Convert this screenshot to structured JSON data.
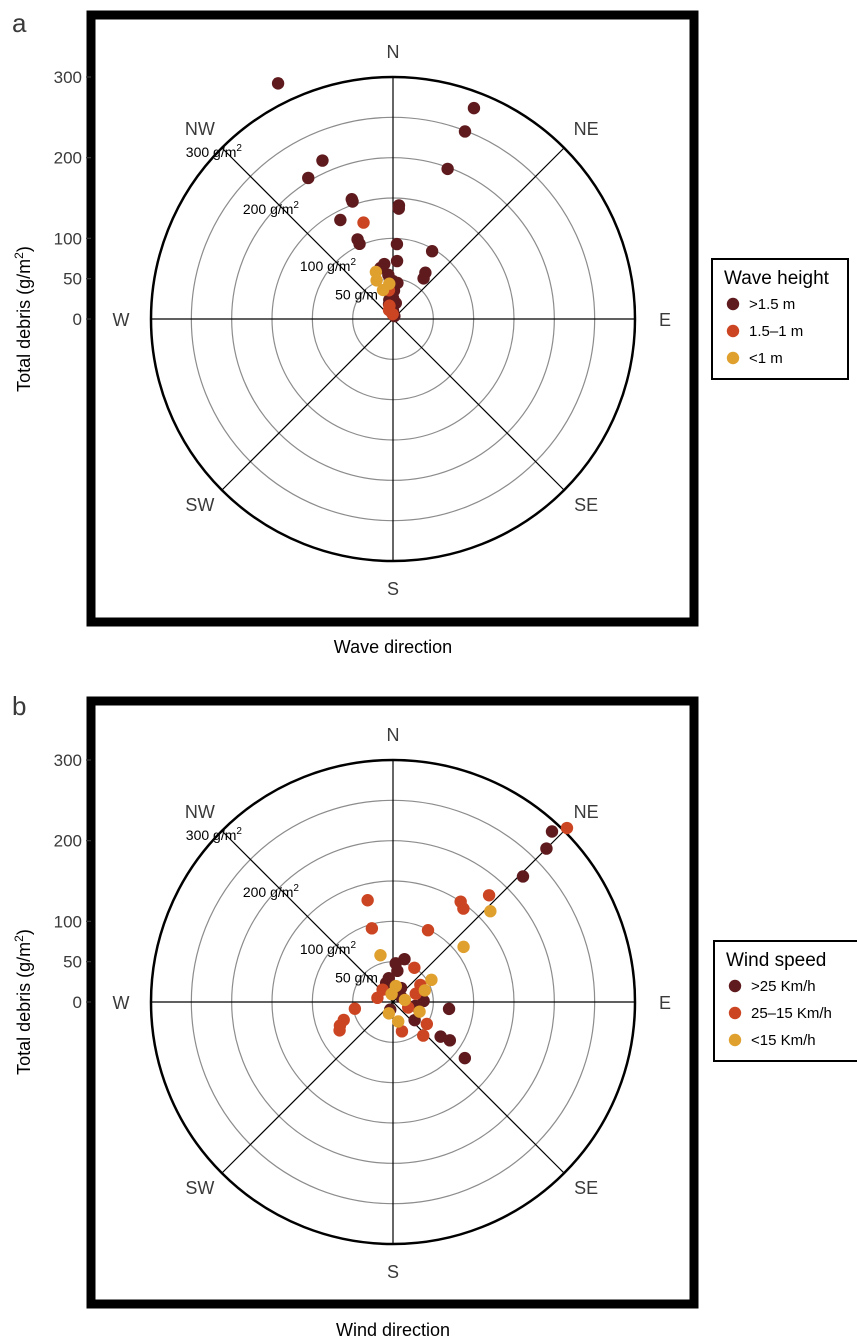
{
  "colors": {
    "dark": "#5e1a1d",
    "mid": "#cc4522",
    "light": "#e0a02e",
    "grid": "#8c8c8c",
    "axis": "#000000",
    "text": "#3a3a3a"
  },
  "chart_data": [
    {
      "type": "scatter",
      "coordinate_system": "polar",
      "panel_label": "a",
      "xlabel": "Wave direction",
      "ylabel": "Total debris (g/m²)",
      "ylabel_parts": {
        "main": "Total debris (g/m",
        "sup": "2",
        "end": ")"
      },
      "yticks": [
        {
          "value": 300,
          "label": "300"
        },
        {
          "value": 200,
          "label": "200"
        },
        {
          "value": 100,
          "label": "100"
        },
        {
          "value": 50,
          "label": "50"
        },
        {
          "value": 0,
          "label": "0"
        }
      ],
      "ring_values": [
        50,
        100,
        150,
        200,
        250
      ],
      "ring_labels": [
        {
          "value": 50,
          "text": "50 g/m",
          "sup": ""
        },
        {
          "value": 100,
          "text": "100 g/m",
          "sup": "2"
        },
        {
          "value": 200,
          "text": "200 g/m",
          "sup": "2"
        },
        {
          "value": 300,
          "text": "300 g/m",
          "sup": "2"
        }
      ],
      "rlim": [
        0,
        300
      ],
      "directions": [
        "N",
        "NE",
        "E",
        "SE",
        "S",
        "SW",
        "W",
        "NW"
      ],
      "legend": {
        "title": "Wave height",
        "position": "right",
        "entries": [
          {
            "label": ">1.5 m",
            "color": "#5e1a1d"
          },
          {
            "label": "1.5–1 m",
            "color": "#cc4522"
          },
          {
            "label": "<1 m",
            "color": "#e0a02e"
          }
        ]
      },
      "series": [
        {
          "name": ">1.5 m",
          "color": "#5e1a1d",
          "points": [
            {
              "dir_deg": 334,
              "debris": 325
            },
            {
              "dir_deg": 21,
              "debris": 280
            },
            {
              "dir_deg": 21,
              "debris": 249
            },
            {
              "dir_deg": 20,
              "debris": 198
            },
            {
              "dir_deg": 336,
              "debris": 215
            },
            {
              "dir_deg": 329,
              "debris": 204
            },
            {
              "dir_deg": 341,
              "debris": 157
            },
            {
              "dir_deg": 341,
              "debris": 154
            },
            {
              "dir_deg": 332,
              "debris": 139
            },
            {
              "dir_deg": 336,
              "debris": 108
            },
            {
              "dir_deg": 336,
              "debris": 102
            },
            {
              "dir_deg": 3,
              "debris": 141
            },
            {
              "dir_deg": 3,
              "debris": 137
            },
            {
              "dir_deg": 30,
              "debris": 97
            },
            {
              "dir_deg": 35,
              "debris": 70
            },
            {
              "dir_deg": 37,
              "debris": 63
            },
            {
              "dir_deg": 3,
              "debris": 93
            },
            {
              "dir_deg": 4,
              "debris": 72
            },
            {
              "dir_deg": 351,
              "debris": 69
            },
            {
              "dir_deg": 346,
              "debris": 65
            },
            {
              "dir_deg": 354,
              "debris": 55
            },
            {
              "dir_deg": 0,
              "debris": 47
            },
            {
              "dir_deg": 7,
              "debris": 45
            },
            {
              "dir_deg": 2,
              "debris": 35
            },
            {
              "dir_deg": 0,
              "debris": 26
            },
            {
              "dir_deg": 354,
              "debris": 30
            },
            {
              "dir_deg": 349,
              "debris": 24
            },
            {
              "dir_deg": 345,
              "debris": 19
            },
            {
              "dir_deg": 356,
              "debris": 14
            },
            {
              "dir_deg": 10,
              "debris": 20
            },
            {
              "dir_deg": 350,
              "debris": 8
            },
            {
              "dir_deg": 0,
              "debris": 10
            },
            {
              "dir_deg": 25,
              "debris": 4
            }
          ]
        },
        {
          "name": "1.5–1 m",
          "color": "#cc4522",
          "points": [
            {
              "dir_deg": 343,
              "debris": 125
            },
            {
              "dir_deg": 352,
              "debris": 36
            },
            {
              "dir_deg": 345,
              "debris": 17
            },
            {
              "dir_deg": 336,
              "debris": 12
            },
            {
              "dir_deg": 356,
              "debris": 6
            }
          ]
        },
        {
          "name": "<1 m",
          "color": "#e0a02e",
          "points": [
            {
              "dir_deg": 340,
              "debris": 62
            },
            {
              "dir_deg": 337,
              "debris": 52
            },
            {
              "dir_deg": 341,
              "debris": 38
            },
            {
              "dir_deg": 354,
              "debris": 44
            }
          ]
        }
      ]
    },
    {
      "type": "scatter",
      "coordinate_system": "polar",
      "panel_label": "b",
      "xlabel": "Wind direction",
      "ylabel": "Total debris (g/m²)",
      "ylabel_parts": {
        "main": "Total debris (g/m",
        "sup": "2",
        "end": ")"
      },
      "yticks": [
        {
          "value": 300,
          "label": "300"
        },
        {
          "value": 200,
          "label": "200"
        },
        {
          "value": 100,
          "label": "100"
        },
        {
          "value": 50,
          "label": "50"
        },
        {
          "value": 0,
          "label": "0"
        }
      ],
      "ring_values": [
        50,
        100,
        150,
        200,
        250
      ],
      "ring_labels": [
        {
          "value": 50,
          "text": "50 g/m",
          "sup": ""
        },
        {
          "value": 100,
          "text": "100 g/m",
          "sup": "2"
        },
        {
          "value": 200,
          "text": "200 g/m",
          "sup": "2"
        },
        {
          "value": 300,
          "text": "300 g/m",
          "sup": "2"
        }
      ],
      "rlim": [
        0,
        300
      ],
      "directions": [
        "N",
        "NE",
        "E",
        "SE",
        "S",
        "SW",
        "W",
        "NW"
      ],
      "legend": {
        "title": "Wind speed",
        "position": "right",
        "entries": [
          {
            "label": ">25 Km/h",
            "color": "#5e1a1d"
          },
          {
            "label": "25–15 Km/h",
            "color": "#cc4522"
          },
          {
            "label": "<15 Km/h",
            "color": "#e0a02e"
          }
        ]
      },
      "series": [
        {
          "name": ">25 Km/h",
          "color": "#5e1a1d",
          "points": [
            {
              "dir_deg": 43,
              "debris": 289
            },
            {
              "dir_deg": 45,
              "debris": 269
            },
            {
              "dir_deg": 46,
              "debris": 224
            },
            {
              "dir_deg": 4,
              "debris": 48
            },
            {
              "dir_deg": 8,
              "debris": 39
            },
            {
              "dir_deg": 30,
              "debris": 20
            },
            {
              "dir_deg": 60,
              "debris": 12
            },
            {
              "dir_deg": 97,
              "debris": 70
            },
            {
              "dir_deg": 126,
              "debris": 73
            },
            {
              "dir_deg": 124,
              "debris": 85
            },
            {
              "dir_deg": 128,
              "debris": 113
            },
            {
              "dir_deg": 100,
              "debris": 28
            },
            {
              "dir_deg": 88,
              "debris": 38
            },
            {
              "dir_deg": 130,
              "debris": 35
            },
            {
              "dir_deg": 350,
              "debris": 30
            },
            {
              "dir_deg": 340,
              "debris": 25
            },
            {
              "dir_deg": 200,
              "debris": 10
            },
            {
              "dir_deg": 15,
              "debris": 55
            }
          ]
        },
        {
          "name": "25–15 Km/h",
          "color": "#cc4522",
          "points": [
            {
              "dir_deg": 45,
              "debris": 305
            },
            {
              "dir_deg": 42,
              "debris": 178
            },
            {
              "dir_deg": 34,
              "debris": 150
            },
            {
              "dir_deg": 37,
              "debris": 145
            },
            {
              "dir_deg": 26,
              "debris": 99
            },
            {
              "dir_deg": 346,
              "debris": 130
            },
            {
              "dir_deg": 344,
              "debris": 95
            },
            {
              "dir_deg": 32,
              "debris": 50
            },
            {
              "dir_deg": 242,
              "debris": 75
            },
            {
              "dir_deg": 246,
              "debris": 72
            },
            {
              "dir_deg": 250,
              "debris": 65
            },
            {
              "dir_deg": 260,
              "debris": 48
            },
            {
              "dir_deg": 163,
              "debris": 38
            },
            {
              "dir_deg": 138,
              "debris": 56
            },
            {
              "dir_deg": 123,
              "debris": 50
            },
            {
              "dir_deg": 285,
              "debris": 20
            },
            {
              "dir_deg": 320,
              "debris": 20
            },
            {
              "dir_deg": 70,
              "debris": 30
            },
            {
              "dir_deg": 58,
              "debris": 40
            },
            {
              "dir_deg": 110,
              "debris": 20
            }
          ]
        },
        {
          "name": "<15 Km/h",
          "color": "#e0a02e",
          "points": [
            {
              "dir_deg": 47,
              "debris": 165
            },
            {
              "dir_deg": 52,
              "debris": 111
            },
            {
              "dir_deg": 345,
              "debris": 60
            },
            {
              "dir_deg": 60,
              "debris": 55
            },
            {
              "dir_deg": 70,
              "debris": 42
            },
            {
              "dir_deg": 110,
              "debris": 35
            },
            {
              "dir_deg": 165,
              "debris": 25
            },
            {
              "dir_deg": 200,
              "debris": 15
            },
            {
              "dir_deg": 10,
              "debris": 20
            },
            {
              "dir_deg": 350,
              "debris": 10
            },
            {
              "dir_deg": 80,
              "debris": 15
            }
          ]
        }
      ]
    }
  ]
}
